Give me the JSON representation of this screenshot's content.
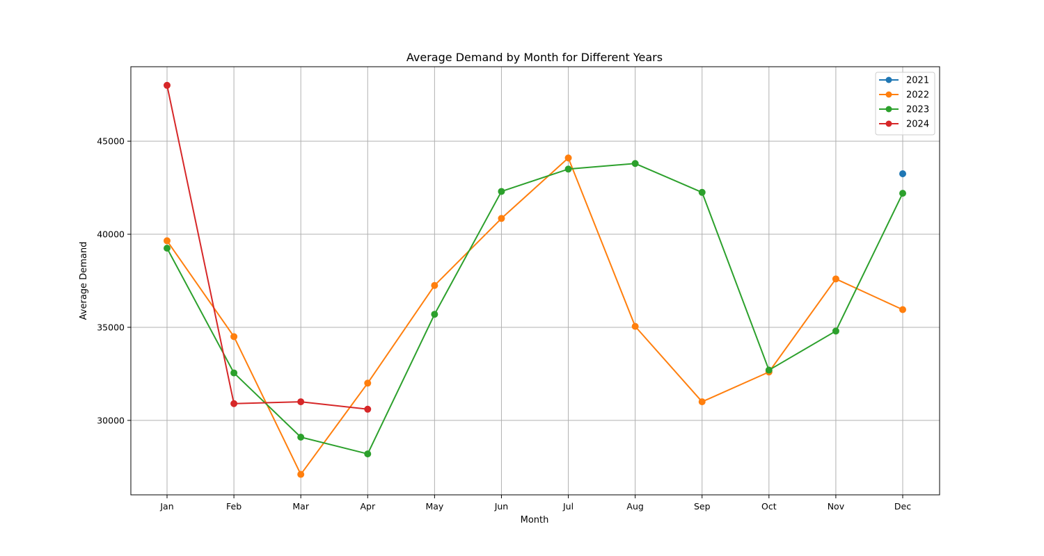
{
  "chart_data": {
    "type": "line",
    "title": "Average Demand by Month for Different Years",
    "xlabel": "Month",
    "ylabel": "Average Demand",
    "categories": [
      "Jan",
      "Feb",
      "Mar",
      "Apr",
      "May",
      "Jun",
      "Jul",
      "Aug",
      "Sep",
      "Oct",
      "Nov",
      "Dec"
    ],
    "ylim": [
      26000,
      49000
    ],
    "yticks": [
      30000,
      35000,
      40000,
      45000
    ],
    "ytick_labels": [
      "30000",
      "35000",
      "40000",
      "45000"
    ],
    "grid": true,
    "legend_position": "top-right",
    "series": [
      {
        "name": "2021",
        "color": "#1f77b4",
        "marker": "circle",
        "values": [
          null,
          null,
          null,
          null,
          null,
          null,
          null,
          null,
          null,
          null,
          null,
          43250
        ]
      },
      {
        "name": "2022",
        "color": "#ff7f0e",
        "marker": "circle",
        "values": [
          39650,
          34500,
          27100,
          32000,
          37250,
          40850,
          44100,
          35050,
          31000,
          32600,
          37600,
          35950
        ]
      },
      {
        "name": "2023",
        "color": "#2ca02c",
        "marker": "circle",
        "values": [
          39250,
          32550,
          29100,
          28200,
          35700,
          42300,
          43500,
          43800,
          42250,
          32700,
          34800,
          42200
        ]
      },
      {
        "name": "2024",
        "color": "#d62728",
        "marker": "circle",
        "values": [
          48000,
          30900,
          31000,
          30600,
          null,
          null,
          null,
          null,
          null,
          null,
          null,
          null
        ]
      }
    ]
  }
}
